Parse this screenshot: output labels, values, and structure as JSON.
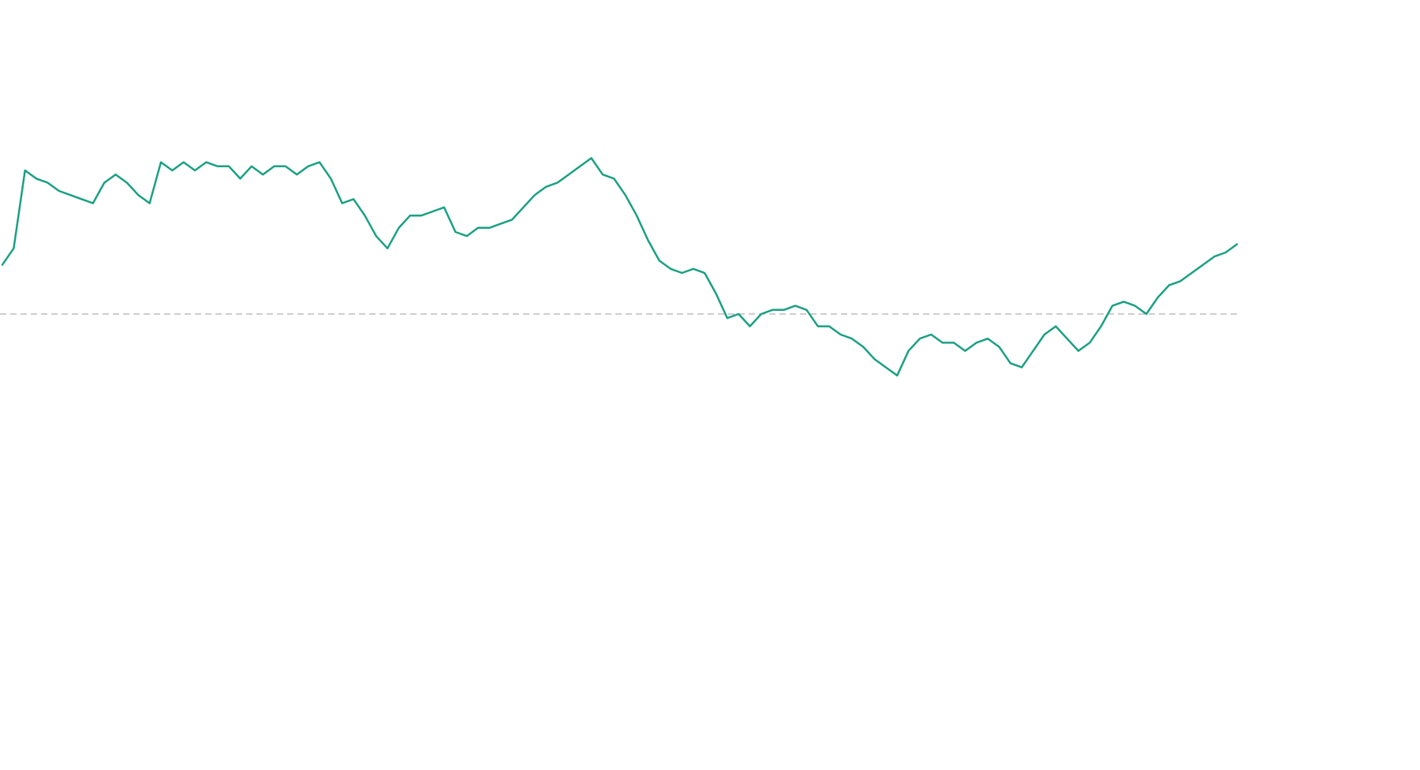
{
  "chart_data": {
    "type": "line",
    "title": "",
    "xlabel": "",
    "ylabel": "",
    "ylim": [
      0,
      1
    ],
    "grid": false,
    "legend": "none",
    "reference_line": {
      "value": 0.5,
      "style": "dashed",
      "color": "#9e9e9e"
    },
    "series": [
      {
        "color": "#1aa083",
        "values": [
          0.62,
          0.66,
          0.85,
          0.83,
          0.82,
          0.8,
          0.79,
          0.78,
          0.77,
          0.82,
          0.84,
          0.82,
          0.79,
          0.77,
          0.87,
          0.85,
          0.87,
          0.85,
          0.87,
          0.86,
          0.86,
          0.83,
          0.86,
          0.84,
          0.86,
          0.86,
          0.84,
          0.86,
          0.87,
          0.83,
          0.77,
          0.78,
          0.74,
          0.69,
          0.66,
          0.71,
          0.74,
          0.74,
          0.75,
          0.76,
          0.7,
          0.69,
          0.71,
          0.71,
          0.72,
          0.73,
          0.76,
          0.79,
          0.81,
          0.82,
          0.84,
          0.86,
          0.88,
          0.84,
          0.83,
          0.79,
          0.74,
          0.68,
          0.63,
          0.61,
          0.6,
          0.61,
          0.6,
          0.55,
          0.49,
          0.5,
          0.47,
          0.5,
          0.51,
          0.51,
          0.52,
          0.51,
          0.47,
          0.47,
          0.45,
          0.44,
          0.42,
          0.39,
          0.37,
          0.35,
          0.41,
          0.44,
          0.45,
          0.43,
          0.43,
          0.41,
          0.43,
          0.44,
          0.42,
          0.38,
          0.37,
          0.41,
          0.45,
          0.47,
          0.44,
          0.41,
          0.43,
          0.47,
          0.52,
          0.53,
          0.52,
          0.5,
          0.54,
          0.57,
          0.58,
          0.6,
          0.62,
          0.64,
          0.65,
          0.67
        ]
      }
    ]
  }
}
